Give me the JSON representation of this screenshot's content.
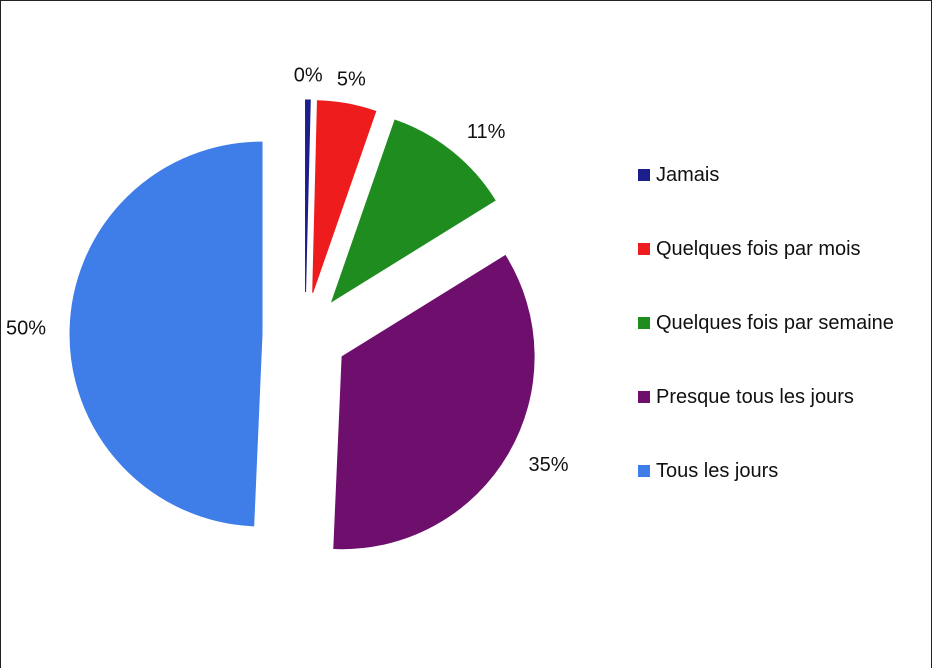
{
  "chart_data": {
    "type": "pie",
    "categories": [
      "Jamais",
      "Quelques fois par mois",
      "Quelques fois par semaine",
      "Presque tous les jours",
      "Tous les jours"
    ],
    "values": [
      0.4,
      5,
      11,
      35,
      50
    ],
    "value_labels": [
      "0%",
      "5%",
      "11%",
      "35%",
      "50%"
    ],
    "colors": [
      "#1a1f8c",
      "#ee1c1c",
      "#1f8c1f",
      "#6e0f6e",
      "#3f7de8"
    ],
    "legend": "right"
  }
}
